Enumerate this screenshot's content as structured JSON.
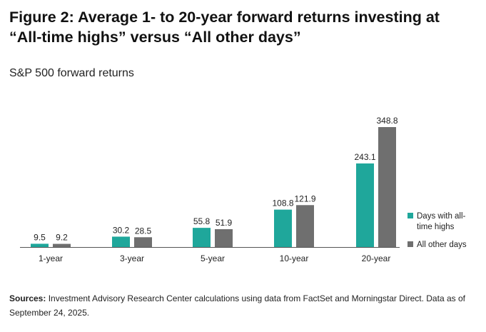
{
  "figure": {
    "title_line1": "Figure 2: Average 1- to 20-year forward returns investing at",
    "title_line2": "“All-time highs” versus “All other days”",
    "subtitle": "S&P 500 forward returns"
  },
  "footnote": {
    "label": "Sources:",
    "text": " Investment Advisory Research Center calculations using data from FactSet and Morningstar Direct. Data as of September 24, 2025."
  },
  "chart_data": {
    "type": "bar",
    "title": "S&P 500 forward returns",
    "xlabel": "",
    "ylabel": "",
    "categories": [
      "1-year",
      "3-year",
      "5-year",
      "10-year",
      "20-year"
    ],
    "series": [
      {
        "name": "Days with all-time highs",
        "legend_lines": [
          "Days with all-",
          "time highs"
        ],
        "color": "#1fa79b",
        "values": [
          9.5,
          30.2,
          55.8,
          108.8,
          243.1
        ]
      },
      {
        "name": "All other days",
        "legend_lines": [
          "All other days"
        ],
        "color": "#6f6f6f",
        "values": [
          9.2,
          28.5,
          51.9,
          121.9,
          348.8
        ]
      }
    ],
    "value_labels": [
      [
        "9.5",
        "30.2",
        "55.8",
        "108.8",
        "243.1"
      ],
      [
        "9.2",
        "28.5",
        "51.9",
        "121.9",
        "348.8"
      ]
    ],
    "ylim": [
      0,
      348.8
    ],
    "grid": false,
    "legend_position": "right"
  }
}
